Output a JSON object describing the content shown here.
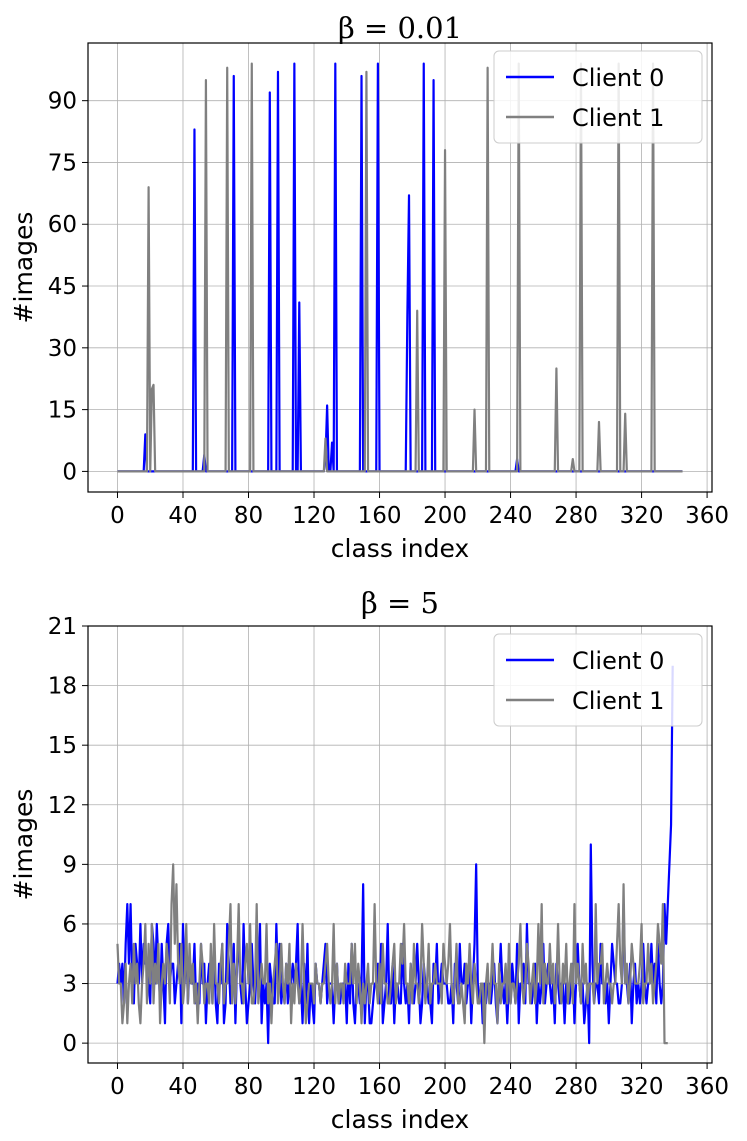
{
  "chart_data": [
    {
      "type": "line",
      "title": "β = 0.01",
      "xlabel": "class index",
      "ylabel": "#images",
      "xlim": [
        -18,
        363
      ],
      "ylim": [
        -5,
        104
      ],
      "xticks": [
        "0",
        "40",
        "80",
        "120",
        "160",
        "200",
        "240",
        "280",
        "320",
        "360"
      ],
      "yticks": [
        "0",
        "15",
        "30",
        "45",
        "60",
        "75",
        "90"
      ],
      "grid": true,
      "legend_position": "top-right",
      "series": [
        {
          "name": "Client 0",
          "color": "#0000ff",
          "sparse": true,
          "length": 346,
          "points": [
            [
              17,
              9
            ],
            [
              47,
              83
            ],
            [
              53,
              4
            ],
            [
              71,
              96
            ],
            [
              93,
              92
            ],
            [
              98,
              97
            ],
            [
              108,
              99
            ],
            [
              111,
              41
            ],
            [
              127,
              3
            ],
            [
              128,
              16
            ],
            [
              131,
              7
            ],
            [
              133,
              99
            ],
            [
              149,
              96
            ],
            [
              159,
              99
            ],
            [
              177,
              38
            ],
            [
              178,
              67
            ],
            [
              187,
              99
            ],
            [
              193,
              95
            ],
            [
              244,
              3
            ]
          ]
        },
        {
          "name": "Client 1",
          "color": "#808080",
          "sparse": true,
          "length": 346,
          "points": [
            [
              19,
              69
            ],
            [
              21,
              20
            ],
            [
              22,
              21
            ],
            [
              54,
              95
            ],
            [
              67,
              98
            ],
            [
              82,
              99
            ],
            [
              127,
              8
            ],
            [
              152,
              97
            ],
            [
              183,
              39
            ],
            [
              200,
              78
            ],
            [
              218,
              15
            ],
            [
              226,
              98
            ],
            [
              245,
              99
            ],
            [
              268,
              25
            ],
            [
              278,
              3
            ],
            [
              283,
              99
            ],
            [
              294,
              12
            ],
            [
              306,
              99
            ],
            [
              310,
              14
            ],
            [
              327,
              99
            ]
          ]
        }
      ]
    },
    {
      "type": "line",
      "title": "β = 5",
      "xlabel": "class index",
      "ylabel": "#images",
      "xlim": [
        -18,
        363
      ],
      "ylim": [
        -1,
        21
      ],
      "xticks": [
        "0",
        "40",
        "80",
        "120",
        "160",
        "200",
        "240",
        "280",
        "320",
        "360"
      ],
      "yticks": [
        "0",
        "3",
        "6",
        "9",
        "12",
        "15",
        "18",
        "21"
      ],
      "grid": true,
      "legend_position": "top-right",
      "series": [
        {
          "name": "Client 0",
          "color": "#0000ff",
          "values": [
            3,
            4,
            3,
            4,
            2,
            5,
            7,
            4,
            7,
            3,
            2,
            5,
            4,
            3,
            6,
            3,
            5,
            4,
            4,
            3,
            2,
            6,
            5,
            3,
            6,
            4,
            2,
            5,
            3,
            1,
            5,
            6,
            3,
            4,
            4,
            2,
            3,
            4,
            5,
            1,
            6,
            3,
            5,
            2,
            4,
            3,
            3,
            5,
            2,
            3,
            2,
            5,
            3,
            4,
            1,
            3,
            4,
            4,
            2,
            5,
            2,
            1,
            4,
            3,
            5,
            1,
            2,
            6,
            4,
            2,
            3,
            5,
            1,
            4,
            5,
            3,
            2,
            6,
            3,
            1,
            2,
            3,
            5,
            3,
            2,
            4,
            3,
            6,
            1,
            3,
            2,
            3,
            0,
            4,
            3,
            2,
            2,
            6,
            3,
            5,
            2,
            3,
            2,
            4,
            2,
            3,
            3,
            4,
            3,
            4,
            6,
            2,
            3,
            1,
            4,
            2,
            5,
            1,
            3,
            2,
            1,
            4,
            3,
            3,
            2,
            3,
            4,
            5,
            2,
            3,
            3,
            3,
            1,
            3,
            4,
            2,
            2,
            3,
            3,
            3,
            1,
            4,
            2,
            5,
            2,
            1,
            3,
            3,
            2,
            3,
            8,
            1,
            3,
            3,
            1,
            1,
            2,
            3,
            3,
            4,
            2,
            5,
            1,
            2,
            3,
            6,
            2,
            2,
            4,
            1,
            3,
            3,
            2,
            2,
            5,
            3,
            2,
            3,
            1,
            4,
            3,
            2,
            3,
            5,
            3,
            1,
            2,
            4,
            3,
            3,
            2,
            2,
            1,
            4,
            3,
            5,
            2,
            3,
            4,
            3,
            3,
            3,
            2,
            2,
            3,
            1,
            4,
            3,
            2,
            5,
            3,
            3,
            4,
            2,
            3,
            4,
            1,
            3,
            5,
            9,
            3,
            2,
            3,
            1,
            3,
            2,
            3,
            3,
            2,
            3,
            4,
            2,
            1,
            3,
            5,
            3,
            2,
            3,
            1,
            3,
            2,
            4,
            3,
            2,
            5,
            1,
            3,
            3,
            4,
            2,
            6,
            3,
            3,
            2,
            3,
            4,
            1,
            3,
            2,
            3,
            5,
            2,
            3,
            4,
            3,
            2,
            3,
            1,
            4,
            3,
            2,
            3,
            3,
            1,
            3,
            2,
            2,
            3,
            4,
            1,
            3,
            5,
            3,
            2,
            3,
            1,
            2,
            3,
            0,
            10,
            4,
            2,
            3,
            3,
            2,
            5,
            3,
            3,
            2,
            3,
            1,
            3,
            5,
            4,
            3,
            3,
            2,
            2,
            3,
            7,
            3,
            3,
            2,
            4,
            1,
            3,
            4,
            2,
            3,
            2,
            3,
            5,
            3,
            2,
            3,
            3,
            5,
            3,
            4,
            2,
            5,
            3,
            2,
            3,
            7,
            5,
            7,
            9,
            11,
            19
          ]
        },
        {
          "name": "Client 1",
          "color": "#808080",
          "values": [
            5,
            3,
            3,
            1,
            2,
            4,
            1,
            3,
            4,
            2,
            5,
            3,
            4,
            2,
            1,
            3,
            4,
            6,
            2,
            5,
            3,
            6,
            2,
            4,
            3,
            5,
            1,
            3,
            4,
            3,
            5,
            4,
            2,
            7,
            9,
            5,
            8,
            4,
            3,
            5,
            2,
            3,
            6,
            2,
            5,
            3,
            4,
            2,
            3,
            1,
            3,
            5,
            4,
            2,
            3,
            3,
            2,
            5,
            2,
            6,
            3,
            3,
            2,
            4,
            5,
            2,
            3,
            3,
            5,
            7,
            2,
            4,
            2,
            4,
            7,
            3,
            3,
            2,
            4,
            5,
            3,
            6,
            2,
            2,
            3,
            7,
            2,
            3,
            4,
            3,
            3,
            6,
            2,
            3,
            1,
            3,
            4,
            5,
            2,
            3,
            5,
            3,
            2,
            4,
            3,
            5,
            1,
            3,
            2,
            4,
            3,
            2,
            3,
            6,
            3,
            1,
            2,
            3,
            3,
            3,
            2,
            4,
            3,
            3,
            2,
            3,
            3,
            4,
            5,
            3,
            2,
            3,
            6,
            2,
            4,
            2,
            3,
            3,
            2,
            4,
            3,
            3,
            3,
            5,
            3,
            5,
            2,
            4,
            3,
            1,
            3,
            2,
            3,
            4,
            2,
            3,
            3,
            7,
            3,
            2,
            4,
            2,
            5,
            3,
            3,
            2,
            2,
            3,
            4,
            5,
            2,
            3,
            3,
            5,
            4,
            6,
            3,
            3,
            2,
            4,
            2,
            5,
            3,
            3,
            2,
            3,
            6,
            4,
            2,
            3,
            5,
            2,
            3,
            3,
            4,
            3,
            3,
            3,
            2,
            5,
            4,
            3,
            4,
            6,
            3,
            2,
            3,
            5,
            2,
            2,
            3,
            2,
            1,
            4,
            3,
            5,
            3,
            2,
            4,
            3,
            2,
            2,
            3,
            3,
            0,
            3,
            4,
            2,
            3,
            5,
            3,
            3,
            1,
            4,
            2,
            3,
            3,
            4,
            2,
            5,
            2,
            3,
            3,
            2,
            3,
            4,
            6,
            3,
            2,
            3,
            5,
            4,
            2,
            3,
            4,
            2,
            3,
            6,
            3,
            7,
            2,
            4,
            3,
            3,
            5,
            3,
            4,
            2,
            3,
            6,
            3,
            2,
            4,
            3,
            5,
            2,
            3,
            4,
            2,
            7,
            3,
            4,
            3,
            2,
            5,
            3,
            4,
            2,
            3,
            3,
            3,
            2,
            7,
            3,
            4,
            4,
            5,
            2,
            3,
            4,
            3,
            3,
            2,
            3,
            3,
            5,
            7,
            4,
            3,
            8,
            3,
            4,
            2,
            3,
            5,
            4,
            3,
            3,
            3,
            4,
            6,
            2,
            3,
            3,
            5,
            3,
            4,
            2,
            3,
            4,
            6,
            5,
            4,
            7,
            0,
            0,
            0
          ]
        }
      ]
    }
  ]
}
